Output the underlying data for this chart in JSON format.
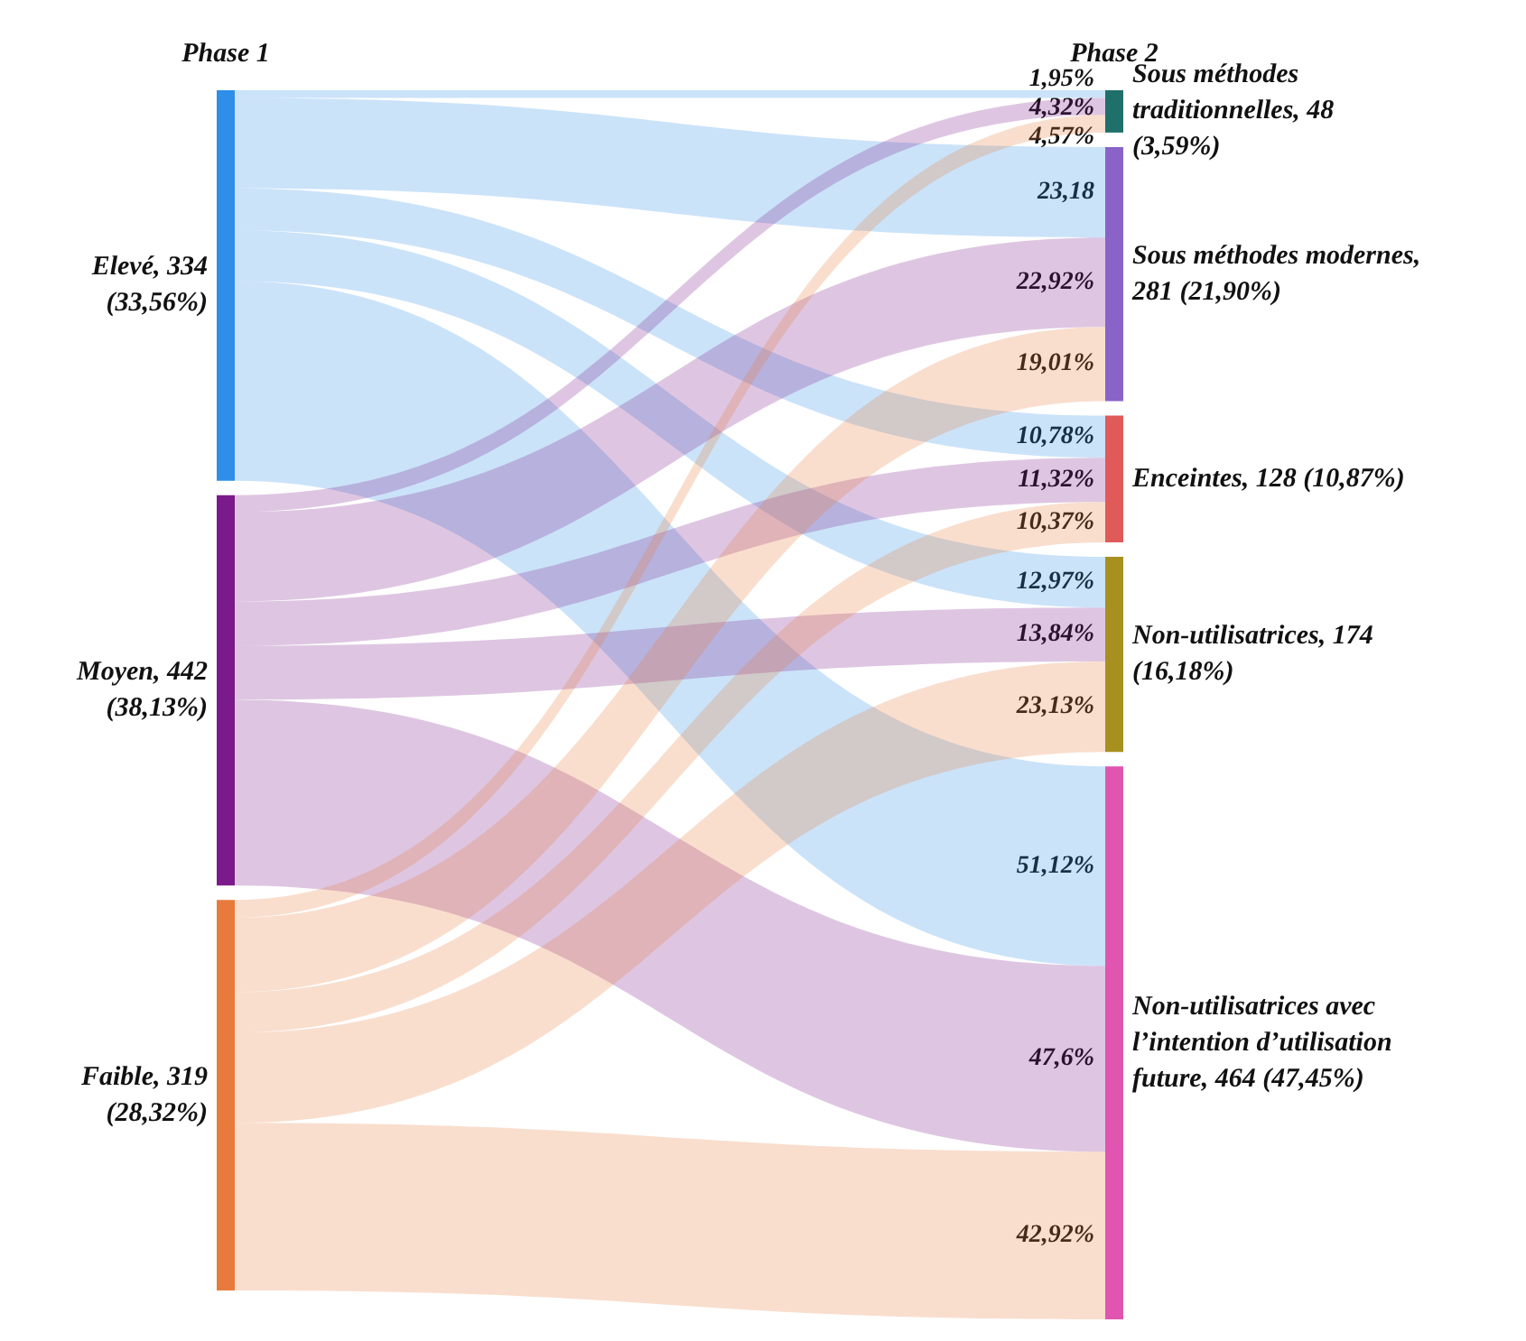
{
  "chart_data": {
    "type": "other",
    "annotations": [
      "Phase 1",
      "Phase 2"
    ],
    "categories": [
      "Sous méthodes traditionnelles, 48 (3,59%)",
      "Sous méthodes modernes, 281 (21,90%)",
      "Enceintes, 128 (10,87%)",
      "Non-utilisatrices, 174 (16,18%)",
      "Non-utilisatrices avec l’intention d’utilisation future, 464 (47,45%)"
    ],
    "colors": [
      "#1f6f6a",
      "#8a63c8",
      "#e05a5a",
      "#a89020",
      "#e055b0"
    ],
    "series": [
      {
        "name": "Elevé, 334 (33,56%)",
        "color": "#2e8ee8",
        "values": [
          1.95,
          23.18,
          10.78,
          12.97,
          51.12
        ],
        "value_labels": [
          "1,95%",
          "23,18",
          "10,78%",
          "12,97%",
          "51,12%"
        ]
      },
      {
        "name": "Moyen, 442 (38,13%)",
        "color": "#7b1a8a",
        "values": [
          4.32,
          22.92,
          11.32,
          13.84,
          47.6
        ],
        "value_labels": [
          "4,32%",
          "22,92%",
          "11,32%",
          "13,84%",
          "47,6%"
        ]
      },
      {
        "name": "Faible, 319 (28,32%)",
        "color": "#e87a3c",
        "values": [
          4.57,
          19.01,
          10.37,
          23.13,
          42.92
        ],
        "value_labels": [
          "4,57%",
          "19,01%",
          "10,37%",
          "23,13%",
          "42,92%"
        ]
      }
    ]
  }
}
